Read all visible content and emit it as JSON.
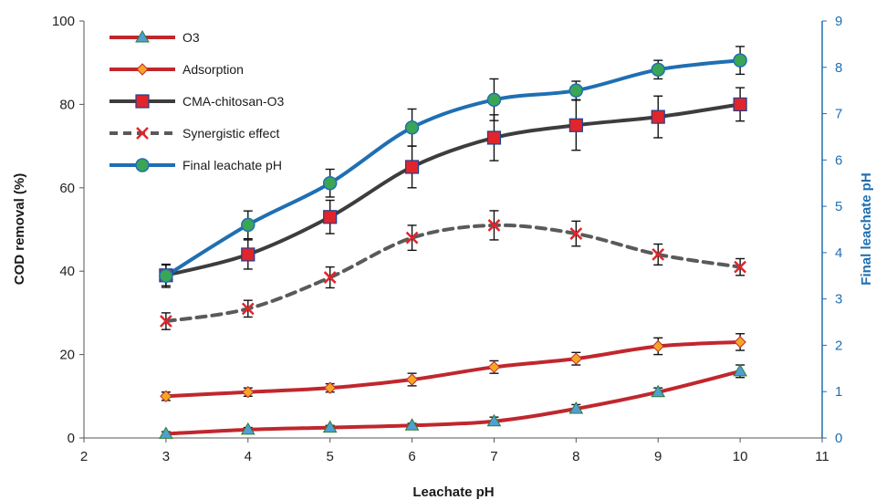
{
  "chart_data": {
    "type": "line",
    "xlabel": "Leachate pH",
    "ylabel": "COD removal (%)",
    "y2label": "Final leachate pH",
    "xlim": [
      2,
      11
    ],
    "ylim": [
      0,
      100
    ],
    "y2lim": [
      0,
      9
    ],
    "xticks": [
      "2",
      "3",
      "4",
      "5",
      "6",
      "7",
      "8",
      "9",
      "10",
      "11"
    ],
    "yticks": [
      "0",
      "20",
      "40",
      "60",
      "80",
      "100"
    ],
    "y2ticks": [
      "0",
      "1",
      "2",
      "3",
      "4",
      "5",
      "6",
      "7",
      "8",
      "9"
    ],
    "x": [
      3,
      4,
      5,
      6,
      7,
      8,
      9,
      10
    ],
    "grid": false,
    "legend_position": "top-left",
    "series": [
      {
        "name": "O3",
        "axis": "left",
        "values": [
          1,
          2,
          2.5,
          3,
          4,
          7,
          11,
          16
        ],
        "errors": [
          0.5,
          0.5,
          0.5,
          0.5,
          1,
          1,
          1,
          1.5
        ],
        "color": "#c0272d",
        "marker": "triangle",
        "marker_color": "#4f9fd6",
        "dash": false
      },
      {
        "name": "Adsorption",
        "axis": "left",
        "values": [
          10,
          11,
          12,
          14,
          17,
          19,
          22,
          23
        ],
        "errors": [
          1,
          1,
          1,
          1.5,
          1.5,
          1.5,
          2,
          2
        ],
        "color": "#c0272d",
        "marker": "diamond",
        "marker_color": "#f5a623",
        "dash": false
      },
      {
        "name": "CMA-chitosan-O3",
        "axis": "left",
        "values": [
          39,
          44,
          53,
          65,
          72,
          75,
          77,
          80
        ],
        "errors": [
          2.5,
          3.5,
          4,
          5,
          5.5,
          6,
          5,
          4
        ],
        "color": "#3d3d3d",
        "marker": "square",
        "marker_color": "#e0252b",
        "dash": false
      },
      {
        "name": "Synergistic effect",
        "axis": "left",
        "values": [
          28,
          31,
          38.5,
          48,
          51,
          49,
          44,
          41
        ],
        "errors": [
          2,
          2,
          2.5,
          3,
          3.5,
          3,
          2.5,
          2
        ],
        "color": "#5a5a5a",
        "marker": "x",
        "marker_color": "#e0252b",
        "dash": true
      },
      {
        "name": "Final leachate pH",
        "axis": "right",
        "values": [
          3.5,
          4.6,
          5.5,
          6.7,
          7.3,
          7.5,
          7.95,
          8.15
        ],
        "errors": [
          0.25,
          0.3,
          0.3,
          0.4,
          0.45,
          0.2,
          0.2,
          0.3
        ],
        "color": "#1f6fb2",
        "marker": "circle",
        "marker_color": "#3aa655",
        "dash": false
      }
    ]
  }
}
